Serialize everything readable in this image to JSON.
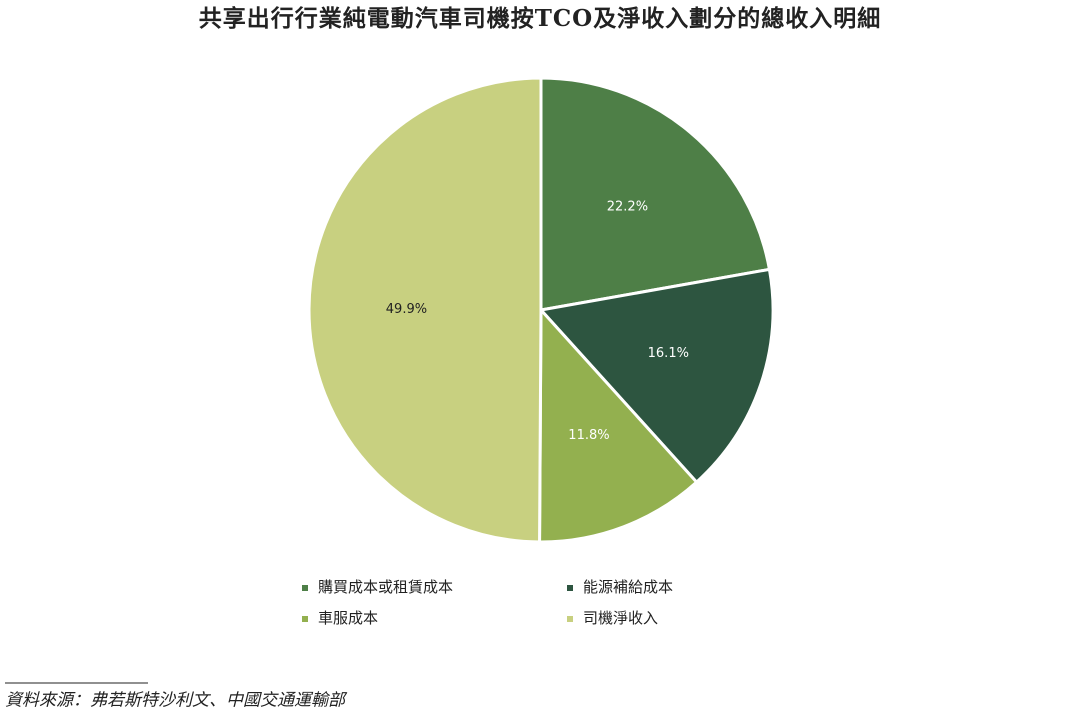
{
  "chart_data": {
    "type": "pie",
    "title": "共享出行行業純電動汽車司機按TCO及淨收入劃分的總收入明細",
    "categories": [
      "購買成本或租賃成本",
      "能源補給成本",
      "車服成本",
      "司機淨收入"
    ],
    "values": [
      22.2,
      16.1,
      11.8,
      49.9
    ],
    "value_labels": [
      "22.2%",
      "16.1%",
      "11.8%",
      "49.9%"
    ],
    "colors": [
      "#4e7f47",
      "#2d5540",
      "#93b04f",
      "#c8d080"
    ]
  },
  "source": "資料來源：弗若斯特沙利文、中國交通運輸部"
}
